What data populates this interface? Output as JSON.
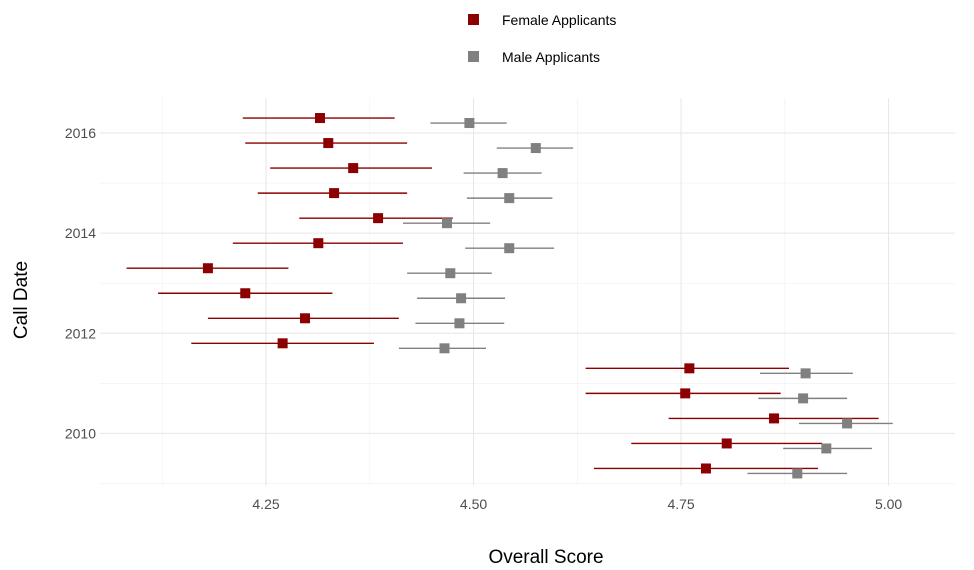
{
  "chart_data": {
    "type": "scatter",
    "title": "",
    "xlabel": "Overall Score",
    "ylabel": "Call Date",
    "xlim": [
      4.05,
      5.08
    ],
    "ylim": [
      2008.95,
      2016.7
    ],
    "x_ticks": [
      "4.25",
      "4.50",
      "4.75",
      "5.00"
    ],
    "x_tick_values": [
      4.25,
      4.5,
      4.75,
      5.0
    ],
    "y_ticks": [
      "2010",
      "2012",
      "2014",
      "2016"
    ],
    "y_tick_values": [
      2010,
      2012,
      2014,
      2016
    ],
    "grid": true,
    "legend_position": "top",
    "error_bars": "horizontal",
    "series": [
      {
        "name": "Female Applicants",
        "color": "#8b0000",
        "points": [
          {
            "y": 2016.3,
            "x": 4.315,
            "lo": 4.222,
            "hi": 4.405
          },
          {
            "y": 2015.8,
            "x": 4.325,
            "lo": 4.225,
            "hi": 4.42
          },
          {
            "y": 2015.3,
            "x": 4.355,
            "lo": 4.255,
            "hi": 4.45
          },
          {
            "y": 2014.8,
            "x": 4.332,
            "lo": 4.24,
            "hi": 4.42
          },
          {
            "y": 2014.3,
            "x": 4.385,
            "lo": 4.29,
            "hi": 4.475
          },
          {
            "y": 2013.8,
            "x": 4.313,
            "lo": 4.21,
            "hi": 4.415
          },
          {
            "y": 2013.3,
            "x": 4.18,
            "lo": 4.082,
            "hi": 4.277
          },
          {
            "y": 2012.8,
            "x": 4.225,
            "lo": 4.12,
            "hi": 4.33
          },
          {
            "y": 2012.3,
            "x": 4.297,
            "lo": 4.18,
            "hi": 4.41
          },
          {
            "y": 2011.8,
            "x": 4.27,
            "lo": 4.16,
            "hi": 4.38
          },
          {
            "y": 2011.3,
            "x": 4.76,
            "lo": 4.635,
            "hi": 4.88
          },
          {
            "y": 2010.8,
            "x": 4.755,
            "lo": 4.635,
            "hi": 4.87
          },
          {
            "y": 2010.3,
            "x": 4.862,
            "lo": 4.735,
            "hi": 4.988
          },
          {
            "y": 2009.8,
            "x": 4.805,
            "lo": 4.69,
            "hi": 4.92
          },
          {
            "y": 2009.3,
            "x": 4.78,
            "lo": 4.645,
            "hi": 4.915
          }
        ]
      },
      {
        "name": "Male Applicants",
        "color": "#808080",
        "points": [
          {
            "y": 2016.2,
            "x": 4.495,
            "lo": 4.448,
            "hi": 4.54
          },
          {
            "y": 2015.7,
            "x": 4.575,
            "lo": 4.528,
            "hi": 4.62
          },
          {
            "y": 2015.2,
            "x": 4.535,
            "lo": 4.488,
            "hi": 4.582
          },
          {
            "y": 2014.7,
            "x": 4.543,
            "lo": 4.492,
            "hi": 4.595
          },
          {
            "y": 2014.2,
            "x": 4.468,
            "lo": 4.415,
            "hi": 4.52
          },
          {
            "y": 2013.7,
            "x": 4.543,
            "lo": 4.49,
            "hi": 4.597
          },
          {
            "y": 2013.2,
            "x": 4.472,
            "lo": 4.42,
            "hi": 4.522
          },
          {
            "y": 2012.7,
            "x": 4.485,
            "lo": 4.432,
            "hi": 4.538
          },
          {
            "y": 2012.2,
            "x": 4.483,
            "lo": 4.43,
            "hi": 4.537
          },
          {
            "y": 2011.7,
            "x": 4.465,
            "lo": 4.41,
            "hi": 4.515
          },
          {
            "y": 2011.2,
            "x": 4.9,
            "lo": 4.845,
            "hi": 4.957
          },
          {
            "y": 2010.7,
            "x": 4.897,
            "lo": 4.843,
            "hi": 4.95
          },
          {
            "y": 2010.2,
            "x": 4.95,
            "lo": 4.892,
            "hi": 5.005
          },
          {
            "y": 2009.7,
            "x": 4.925,
            "lo": 4.873,
            "hi": 4.98
          },
          {
            "y": 2009.2,
            "x": 4.89,
            "lo": 4.83,
            "hi": 4.95
          }
        ]
      }
    ]
  }
}
